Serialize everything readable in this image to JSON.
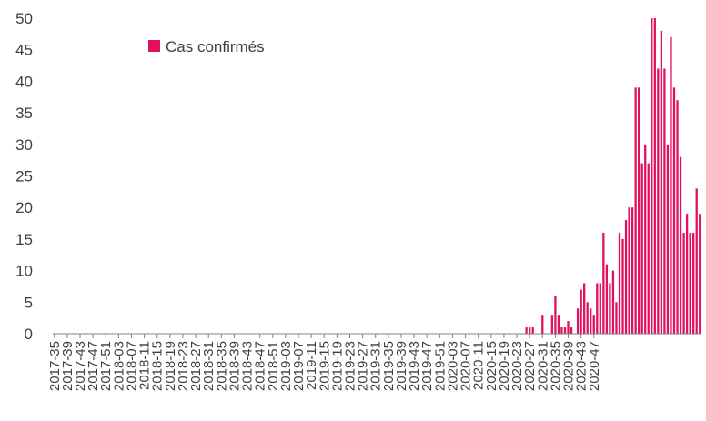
{
  "chart_data": {
    "type": "bar",
    "title": "",
    "xlabel": "",
    "ylabel": "",
    "ylim": [
      0,
      50
    ],
    "yticks": [
      0,
      5,
      10,
      15,
      20,
      25,
      30,
      35,
      40,
      45,
      50
    ],
    "grid": false,
    "legend_position": "top-left",
    "bar_color": "#e0115f",
    "xtick_labels": [
      "2017-35",
      "2017-39",
      "2017-43",
      "2017-47",
      "2017-51",
      "2018-03",
      "2018-07",
      "2018-11",
      "2018-15",
      "2018-19",
      "2018-23",
      "2018-27",
      "2018-31",
      "2018-35",
      "2018-39",
      "2018-43",
      "2018-47",
      "2018-51",
      "2019-03",
      "2019-07",
      "2019-11",
      "2019-15",
      "2019-19",
      "2019-23",
      "2019-27",
      "2019-31",
      "2019-35",
      "2019-39",
      "2019-43",
      "2019-47",
      "2019-51",
      "2020-03",
      "2020-07",
      "2020-11",
      "2020-15",
      "2020-19",
      "2020-23",
      "2020-27",
      "2020-31",
      "2020-35",
      "2020-39",
      "2020-43",
      "2020-47"
    ],
    "series": [
      {
        "name": "Cas confirmés",
        "start_week": "2017-35",
        "values": [
          0,
          0,
          0,
          0,
          0,
          0,
          0,
          0,
          0,
          0,
          0,
          0,
          0,
          0,
          0,
          0,
          0,
          0,
          0,
          0,
          0,
          0,
          0,
          0,
          0,
          0,
          0,
          0,
          0,
          0,
          0,
          0,
          0,
          0,
          0,
          0,
          0,
          0,
          0,
          0,
          0,
          0,
          0,
          0,
          0,
          0,
          0,
          0,
          0,
          0,
          0,
          0,
          0,
          0,
          0,
          0,
          0,
          0,
          0,
          0,
          0,
          0,
          0,
          0,
          0,
          0,
          0,
          0,
          0,
          0,
          0,
          0,
          0,
          0,
          0,
          0,
          0,
          0,
          0,
          0,
          0,
          0,
          0,
          0,
          0,
          0,
          0,
          0,
          0,
          0,
          0,
          0,
          0,
          0,
          0,
          0,
          0,
          0,
          0,
          0,
          0,
          0,
          0,
          0,
          0,
          0,
          0,
          0,
          0,
          0,
          0,
          0,
          0,
          0,
          0,
          0,
          0,
          0,
          0,
          0,
          0,
          0,
          0,
          0,
          0,
          0,
          0,
          0,
          0,
          0,
          0,
          0,
          0,
          0,
          0,
          0,
          0,
          0,
          0,
          0,
          0,
          0,
          0,
          0,
          0,
          0,
          0,
          1,
          1,
          1,
          0,
          0,
          3,
          0,
          0,
          3,
          6,
          3,
          1,
          1,
          2,
          1,
          0,
          4,
          7,
          8,
          5,
          4,
          3,
          8,
          8,
          16,
          11,
          8,
          10,
          5,
          16,
          15,
          18,
          20,
          20,
          39,
          39,
          27,
          30,
          27,
          50,
          50,
          42,
          48,
          42,
          30,
          47,
          39,
          37,
          28,
          16,
          19,
          16,
          16,
          23,
          19
        ]
      }
    ]
  }
}
